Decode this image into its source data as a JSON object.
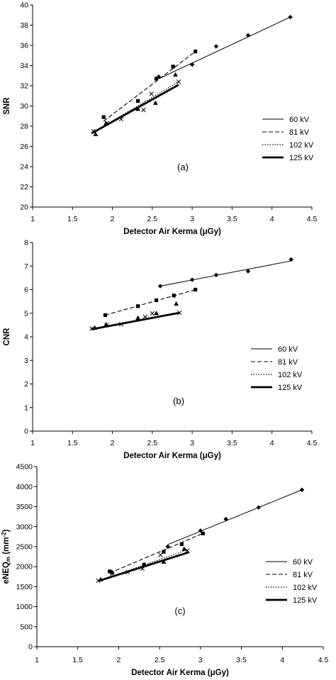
{
  "chart_data": [
    {
      "type": "scatter",
      "panel_label": "(a)",
      "xlabel": "Detector Air Kerma (μGy)",
      "ylabel": "SNR",
      "xlim": [
        1,
        4.5
      ],
      "ylim": [
        20,
        40
      ],
      "xticks": [
        "1",
        "1.5",
        "2",
        "2.5",
        "3",
        "3.5",
        "4",
        "4.5"
      ],
      "yticks": [
        "20",
        "22",
        "24",
        "26",
        "28",
        "30",
        "32",
        "34",
        "36",
        "38",
        "40"
      ],
      "grid": false,
      "legend_position": "right",
      "series": [
        {
          "name": "60 kV",
          "marker": "diamond",
          "line": "solid-thin",
          "points": [
            [
              2.58,
              32.9
            ],
            [
              3.0,
              34.1
            ],
            [
              3.3,
              35.9
            ],
            [
              3.7,
              37.0
            ],
            [
              4.23,
              38.8
            ]
          ],
          "fit": [
            [
              2.58,
              32.7
            ],
            [
              4.23,
              38.8
            ]
          ]
        },
        {
          "name": "81 kV",
          "marker": "square",
          "line": "dashed",
          "points": [
            [
              1.89,
              28.9
            ],
            [
              2.32,
              30.5
            ],
            [
              2.55,
              32.7
            ],
            [
              2.76,
              33.9
            ],
            [
              3.04,
              35.4
            ]
          ],
          "fit": [
            [
              1.89,
              28.5
            ],
            [
              3.04,
              35.4
            ]
          ]
        },
        {
          "name": "102 kV",
          "marker": "x",
          "line": "dotted",
          "points": [
            [
              1.76,
              27.5
            ],
            [
              1.93,
              28.3
            ],
            [
              2.11,
              28.7
            ],
            [
              2.39,
              29.6
            ],
            [
              2.49,
              31.2
            ],
            [
              2.83,
              32.4
            ]
          ],
          "fit": [
            [
              1.76,
              27.4
            ],
            [
              2.83,
              32.4
            ]
          ]
        },
        {
          "name": "125 kV",
          "marker": "triangle",
          "line": "solid-thick",
          "points": [
            [
              1.79,
              27.2
            ],
            [
              1.92,
              28.3
            ],
            [
              2.32,
              29.7
            ],
            [
              2.54,
              30.3
            ],
            [
              2.79,
              33.1
            ]
          ],
          "fit": [
            [
              1.74,
              27.3
            ],
            [
              2.83,
              32.1
            ]
          ]
        }
      ]
    },
    {
      "type": "scatter",
      "panel_label": "(b)",
      "xlabel": "Detector Air Kerma (μGy)",
      "ylabel": "CNR",
      "xlim": [
        1,
        4.5
      ],
      "ylim": [
        0,
        8
      ],
      "xticks": [
        "1",
        "1.5",
        "2",
        "2.5",
        "3",
        "3.5",
        "4",
        "4.5"
      ],
      "yticks": [
        "0",
        "1",
        "2",
        "3",
        "4",
        "5",
        "6",
        "7",
        "8"
      ],
      "grid": false,
      "legend_position": "right",
      "series": [
        {
          "name": "60 kV",
          "marker": "diamond",
          "line": "solid-thin",
          "points": [
            [
              2.6,
              6.15
            ],
            [
              3.0,
              6.42
            ],
            [
              3.3,
              6.62
            ],
            [
              3.7,
              6.78
            ],
            [
              4.24,
              7.28
            ]
          ],
          "fit": [
            [
              2.6,
              6.15
            ],
            [
              4.24,
              7.22
            ]
          ]
        },
        {
          "name": "81 kV",
          "marker": "square",
          "line": "dashed",
          "points": [
            [
              1.91,
              4.92
            ],
            [
              2.32,
              5.3
            ],
            [
              2.55,
              5.55
            ],
            [
              2.77,
              5.75
            ],
            [
              3.04,
              6.0
            ]
          ],
          "fit": [
            [
              1.91,
              4.92
            ],
            [
              3.04,
              6.0
            ]
          ]
        },
        {
          "name": "102 kV",
          "marker": "x",
          "line": "dotted",
          "points": [
            [
              1.74,
              4.35
            ],
            [
              1.93,
              4.5
            ],
            [
              2.11,
              4.53
            ],
            [
              2.41,
              4.85
            ],
            [
              2.5,
              4.99
            ],
            [
              2.84,
              5.02
            ]
          ],
          "fit": [
            [
              1.74,
              4.33
            ],
            [
              2.84,
              5.03
            ]
          ]
        },
        {
          "name": "125 kV",
          "marker": "triangle",
          "line": "solid-thick",
          "points": [
            [
              1.78,
              4.38
            ],
            [
              1.92,
              4.52
            ],
            [
              2.32,
              4.8
            ],
            [
              2.55,
              5.0
            ],
            [
              2.8,
              5.4
            ]
          ],
          "fit": [
            [
              1.74,
              4.32
            ],
            [
              2.84,
              5.02
            ]
          ]
        }
      ]
    },
    {
      "type": "scatter",
      "panel_label": "(c)",
      "xlabel": "Detector Air Kerma (μGy)",
      "ylabel": "eNEQm (mm-2)",
      "ylabel_main": "eNEQ",
      "ylabel_sub": "m",
      "ylabel_unit": " (mm",
      "ylabel_sup": "-2",
      "ylabel_close": ")",
      "xlim": [
        1,
        4.5
      ],
      "ylim": [
        0,
        4500
      ],
      "xticks": [
        "1",
        "1.5",
        "2",
        "2.5",
        "3",
        "3.5",
        "4",
        "4.5"
      ],
      "yticks": [
        "0",
        "500",
        "1000",
        "1500",
        "2000",
        "2500",
        "3000",
        "3500",
        "4000",
        "4500"
      ],
      "grid": false,
      "legend_position": "right",
      "series": [
        {
          "name": "60 kV",
          "marker": "diamond",
          "line": "solid-thin",
          "points": [
            [
              2.6,
              2500
            ],
            [
              3.0,
              2900
            ],
            [
              3.31,
              3190
            ],
            [
              3.71,
              3480
            ],
            [
              4.24,
              3920
            ]
          ],
          "fit": [
            [
              2.6,
              2550
            ],
            [
              4.24,
              3920
            ]
          ]
        },
        {
          "name": "81 kV",
          "marker": "square",
          "line": "dashed",
          "points": [
            [
              1.89,
              1880
            ],
            [
              2.31,
              2050
            ],
            [
              2.55,
              2370
            ],
            [
              2.77,
              2560
            ],
            [
              3.03,
              2830
            ]
          ],
          "fit": [
            [
              1.89,
              1840
            ],
            [
              3.03,
              2830
            ]
          ]
        },
        {
          "name": "102 kV",
          "marker": "x",
          "line": "dotted",
          "points": [
            [
              1.75,
              1650
            ],
            [
              1.92,
              1820
            ],
            [
              2.11,
              1860
            ],
            [
              2.29,
              1950
            ],
            [
              2.51,
              2290
            ],
            [
              2.84,
              2400
            ]
          ],
          "fit": [
            [
              1.75,
              1640
            ],
            [
              2.84,
              2420
            ]
          ]
        },
        {
          "name": "125 kV",
          "marker": "triangle",
          "line": "solid-thick",
          "points": [
            [
              1.78,
              1680
            ],
            [
              1.92,
              1860
            ],
            [
              2.31,
              2040
            ],
            [
              2.55,
              2120
            ],
            [
              2.8,
              2440
            ]
          ],
          "fit": [
            [
              1.75,
              1640
            ],
            [
              2.86,
              2360
            ]
          ]
        }
      ]
    }
  ]
}
